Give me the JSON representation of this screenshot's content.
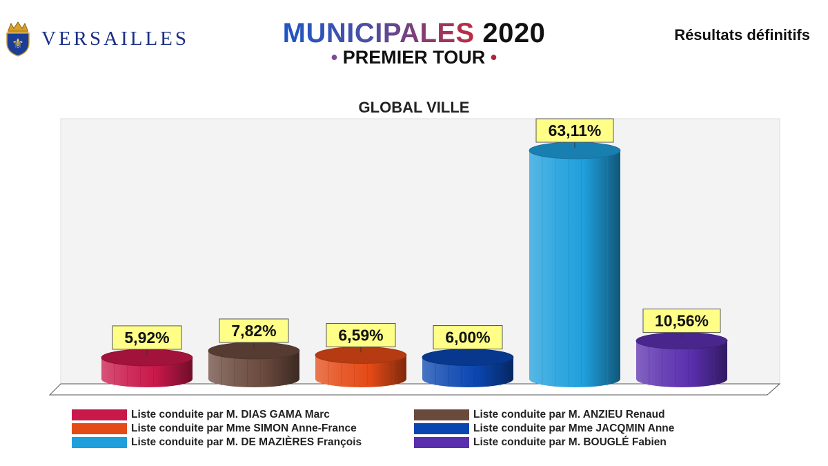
{
  "header": {
    "brand": "VERSAILLES",
    "title_main": "MUNICIPALES",
    "title_year": "2020",
    "title_sub": "PREMIER TOUR",
    "results_label": "Résultats définitifs"
  },
  "chart_data": {
    "type": "bar",
    "style": "3d-cylinder",
    "title": "GLOBAL VILLE",
    "xlabel": "",
    "ylabel": "",
    "ylim": [
      0,
      70
    ],
    "grid": false,
    "legend_placement": "bottom",
    "categories": [
      "Liste conduite par M. DIAS GAMA Marc",
      "Liste conduite par M. ANZIEU Renaud",
      "Liste conduite par Mme SIMON Anne-France",
      "Liste conduite par Mme JACQMIN Anne",
      "Liste conduite par M. DE MAZIÈRES François",
      "Liste conduite par M. BOUGLÉ Fabien"
    ],
    "values": [
      5.92,
      7.82,
      6.59,
      6.0,
      63.11,
      10.56
    ],
    "labels": [
      "5,92%",
      "7,82%",
      "6,59%",
      "6,00%",
      "63,11%",
      "10,56%"
    ],
    "colors": [
      "#c9184a",
      "#6b4a3e",
      "#e44a16",
      "#0a46b0",
      "#1f9fdc",
      "#5a2fae"
    ],
    "label_background": "#ffff88"
  }
}
